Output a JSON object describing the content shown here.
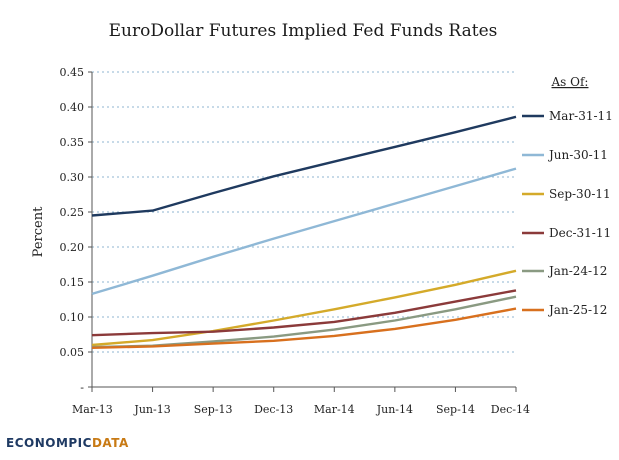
{
  "chart_data": {
    "type": "line",
    "title": "EuroDollar Futures Implied Fed Funds Rates",
    "xlabel": "",
    "ylabel": "Percent",
    "categories": [
      "Mar-13",
      "Jun-13",
      "Sep-13",
      "Dec-13",
      "Mar-14",
      "Jun-14",
      "Sep-14",
      "Dec-14"
    ],
    "y_ticks": [
      "-",
      "0.05",
      "0.10",
      "0.15",
      "0.20",
      "0.25",
      "0.30",
      "0.35",
      "0.40",
      "0.45"
    ],
    "ylim": [
      0,
      0.45
    ],
    "grid": true,
    "legend_title": "As Of:",
    "legend_placement": "right",
    "series": [
      {
        "name": "Mar-31-11",
        "color": "#1f3a5f",
        "values": [
          0.245,
          0.252,
          0.277,
          0.301,
          0.322,
          0.343,
          0.364,
          0.386
        ]
      },
      {
        "name": "Jun-30-11",
        "color": "#8fb8d6",
        "values": [
          0.133,
          0.159,
          0.186,
          0.212,
          0.237,
          0.262,
          0.287,
          0.312
        ]
      },
      {
        "name": "Sep-30-11",
        "color": "#d4aa2a",
        "values": [
          0.06,
          0.067,
          0.08,
          0.095,
          0.111,
          0.128,
          0.146,
          0.166
        ]
      },
      {
        "name": "Dec-31-11",
        "color": "#8b3a3a",
        "values": [
          0.074,
          0.077,
          0.079,
          0.085,
          0.093,
          0.106,
          0.122,
          0.138
        ]
      },
      {
        "name": "Jan-24-12",
        "color": "#8a9a82",
        "values": [
          0.057,
          0.059,
          0.065,
          0.072,
          0.082,
          0.095,
          0.111,
          0.129
        ]
      },
      {
        "name": "Jan-25-12",
        "color": "#d8701e",
        "values": [
          0.056,
          0.058,
          0.062,
          0.066,
          0.073,
          0.083,
          0.096,
          0.112
        ]
      }
    ]
  },
  "watermark": {
    "part1": "ECONOMPIC",
    "part2": "DATA"
  }
}
